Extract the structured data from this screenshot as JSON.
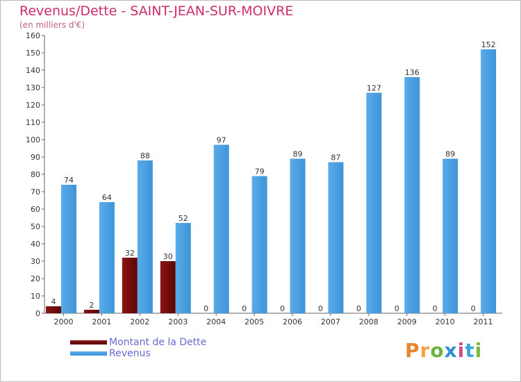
{
  "header": {
    "title": "Revenus/Dette - SAINT-JEAN-SUR-MOIVRE",
    "subtitle": "(en milliers d'€)"
  },
  "chart_data": {
    "type": "bar",
    "title": "Revenus/Dette - SAINT-JEAN-SUR-MOIVRE",
    "ylabel": "(en milliers d'€)",
    "xlabel": "",
    "categories": [
      "2000",
      "2001",
      "2002",
      "2003",
      "2004",
      "2005",
      "2006",
      "2007",
      "2008",
      "2009",
      "2010",
      "2011"
    ],
    "series": [
      {
        "name": "Montant de la Dette",
        "color": "#6b0a0a",
        "values": [
          4,
          2,
          32,
          30,
          0,
          0,
          0,
          0,
          0,
          0,
          0,
          0
        ]
      },
      {
        "name": "Revenus",
        "color": "#3d94d8",
        "values": [
          74,
          64,
          88,
          52,
          97,
          79,
          89,
          87,
          127,
          136,
          89,
          152
        ]
      }
    ],
    "ylim": [
      0,
      160
    ],
    "yticks": [
      0,
      10,
      20,
      30,
      40,
      50,
      60,
      70,
      80,
      90,
      100,
      110,
      120,
      130,
      140,
      150,
      160
    ],
    "grid": false,
    "legend_position": "bottom-left"
  },
  "legend": {
    "items": [
      {
        "label": "Montant de la Dette",
        "color": "#6b0a0a"
      },
      {
        "label": "Revenus",
        "color": "#3d94d8"
      }
    ]
  },
  "logo": {
    "letters": [
      {
        "char": "P",
        "color": "#e8842b"
      },
      {
        "char": "r",
        "color": "#f0a23c"
      },
      {
        "char": "o",
        "color": "#6bb33a"
      },
      {
        "char": "x",
        "color": "#2f8fd0"
      },
      {
        "char": "i",
        "color": "#d84a86"
      },
      {
        "char": "t",
        "color": "#3aa7d8"
      },
      {
        "char": "i",
        "color": "#7ab83a"
      }
    ]
  }
}
